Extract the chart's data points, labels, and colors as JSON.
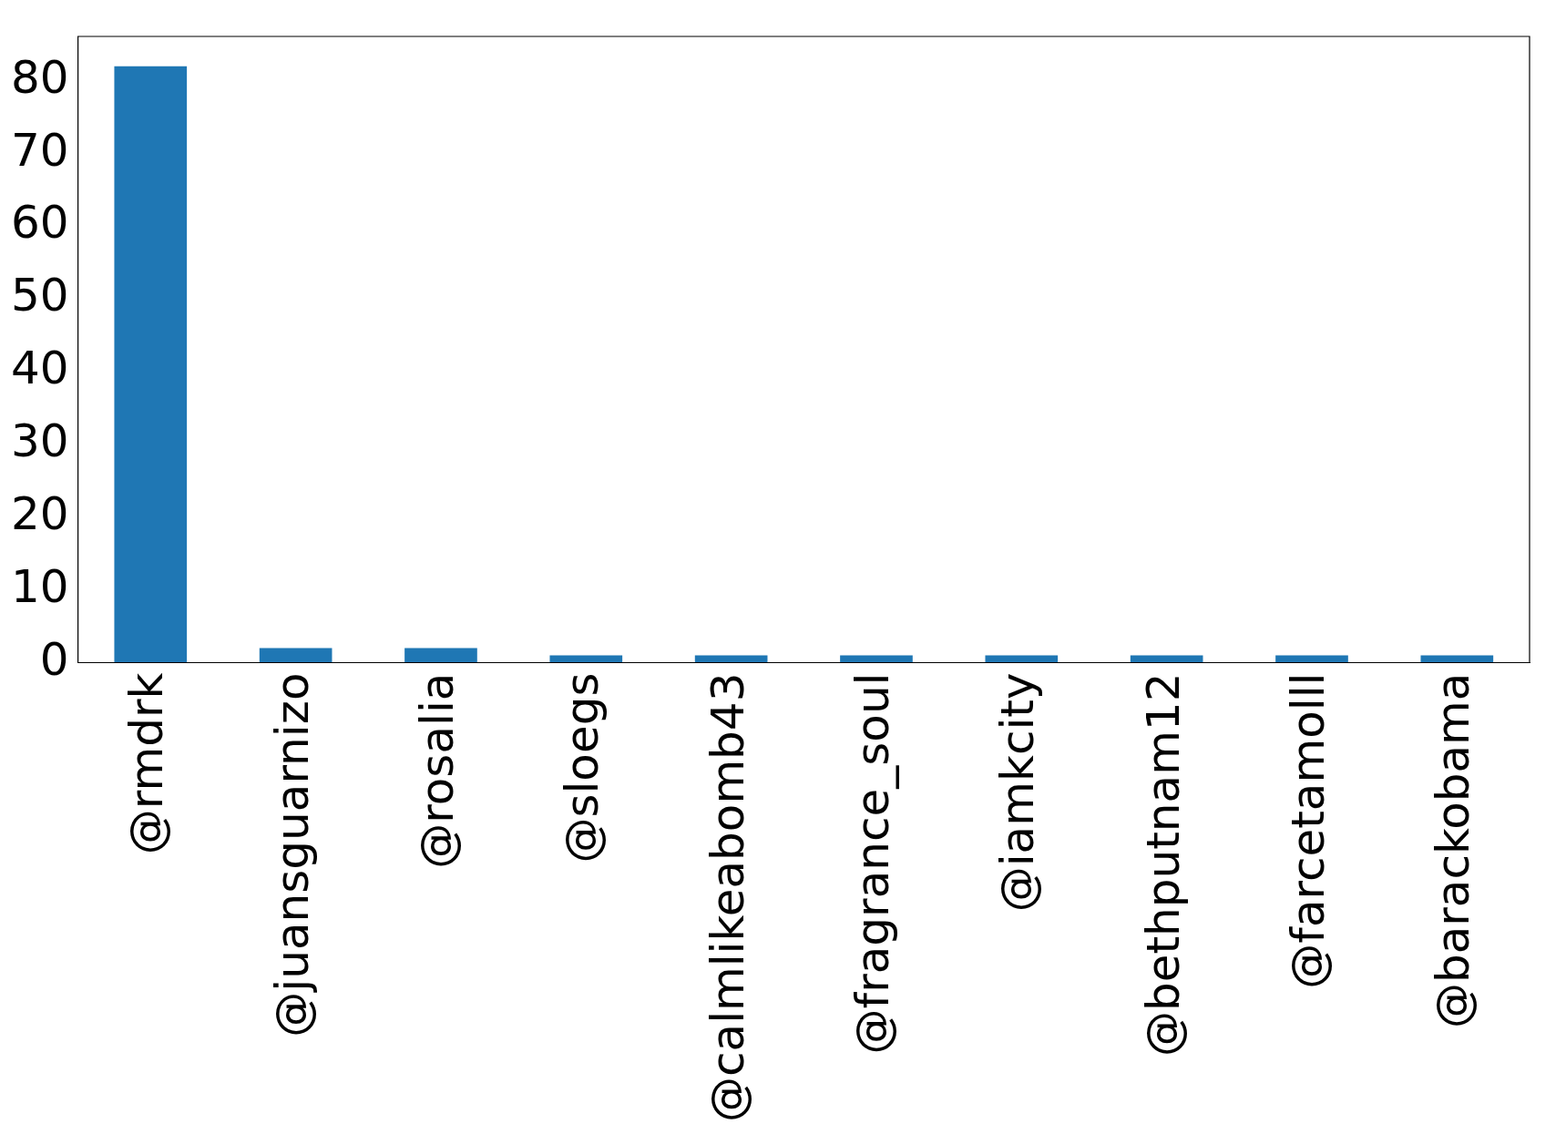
{
  "chart_data": {
    "type": "bar",
    "categories": [
      "@rmdrk",
      "@juansguarnizo",
      "@rosalia",
      "@sloegs",
      "@calmlikeabomb43",
      "@fragrance_soul",
      "@iamkcity",
      "@bethputnam12",
      "@farcetamolll",
      "@barackobama"
    ],
    "values": [
      82,
      2,
      2,
      1,
      1,
      1,
      1,
      1,
      1,
      1
    ],
    "color": "#1f77b4",
    "ylim": [
      0,
      86.1
    ],
    "yticks": [
      0,
      10,
      20,
      30,
      40,
      50,
      60,
      70,
      80
    ],
    "grid": false,
    "legend": false
  }
}
